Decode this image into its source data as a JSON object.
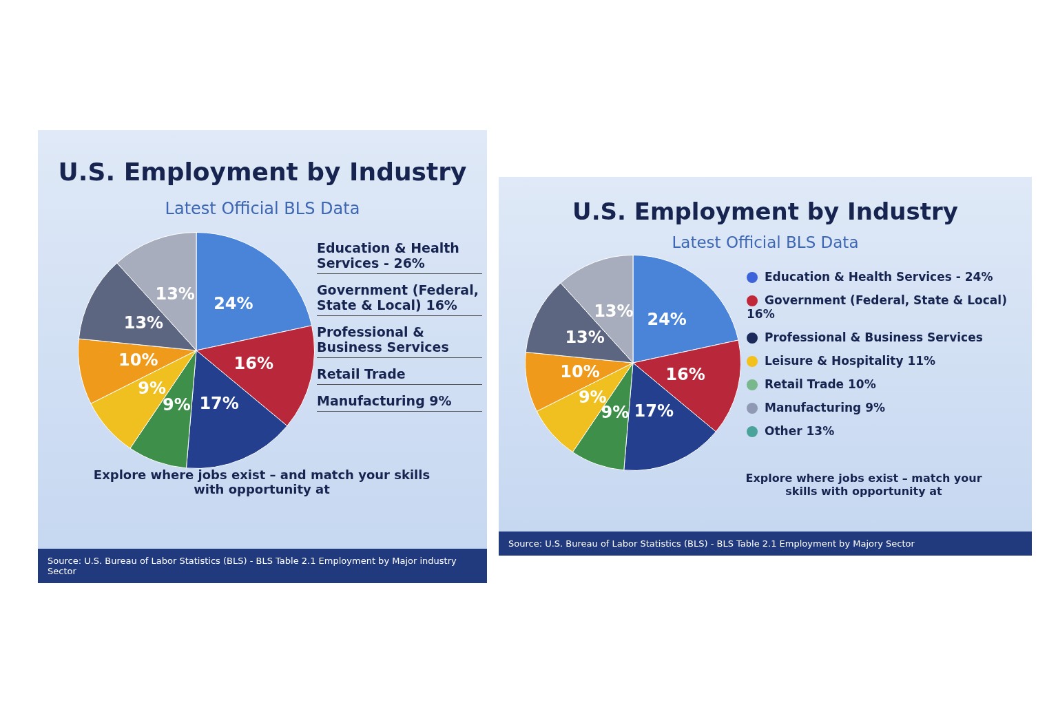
{
  "chart_data": [
    {
      "type": "pie",
      "title": "U.S. Employment by Industry",
      "subtitle": "Latest Official BLS Data",
      "categories": [
        null,
        null,
        null,
        null,
        null,
        null,
        null,
        null
      ],
      "values": [
        24,
        16,
        17,
        9,
        9,
        10,
        13,
        13
      ],
      "value_labels": [
        "24%",
        "16%",
        "17%",
        "9%",
        "9%",
        "10%",
        "13%",
        "13%"
      ],
      "colors": [
        "#4a84d8",
        "#b8283a",
        "#253f8f",
        "#3e8f4a",
        "#f0c020",
        "#f09a1c",
        "#5d6680",
        "#a8adbd"
      ],
      "annotations": [
        "Education & Health Services - 26%",
        "Government (Federal, State & Local) 16%",
        "Professional & Business Services",
        "Retail Trade",
        "Manufacturing 9%",
        "Explore where jobs exist – and match your skills with opportunity at",
        "Source: U.S. Bureau of Labor Statistics (BLS) - BLS Table 2.1 Employment by Major industry Sector"
      ]
    },
    {
      "type": "pie",
      "title": "U.S. Employment by Industry",
      "subtitle": "Latest Official BLS Data",
      "categories": [
        null,
        null,
        null,
        null,
        null,
        null,
        null,
        null
      ],
      "values": [
        24,
        16,
        17,
        9,
        9,
        10,
        13,
        13
      ],
      "value_labels": [
        "24%",
        "16%",
        "17%",
        "9%",
        "9%",
        "10%",
        "13%",
        "13%"
      ],
      "colors": [
        "#4a84d8",
        "#b8283a",
        "#253f8f",
        "#3e8f4a",
        "#f0c020",
        "#f09a1c",
        "#5d6680",
        "#a8adbd"
      ],
      "annotations": [
        "Education & Health Services - 24%",
        "Government (Federal, State & Local) 16%",
        "Professional & Business Services",
        "Leisure & Hospitality 11%",
        "Retail Trade 10%",
        "Manufacturing 9%",
        "Other 13%",
        "Explore where jobs exist – match your skills with opportunity at",
        "Source: U.S. Bureau of Labor Statistics (BLS) - BLS Table 2.1 Employment by Majory Sector"
      ]
    }
  ]
}
